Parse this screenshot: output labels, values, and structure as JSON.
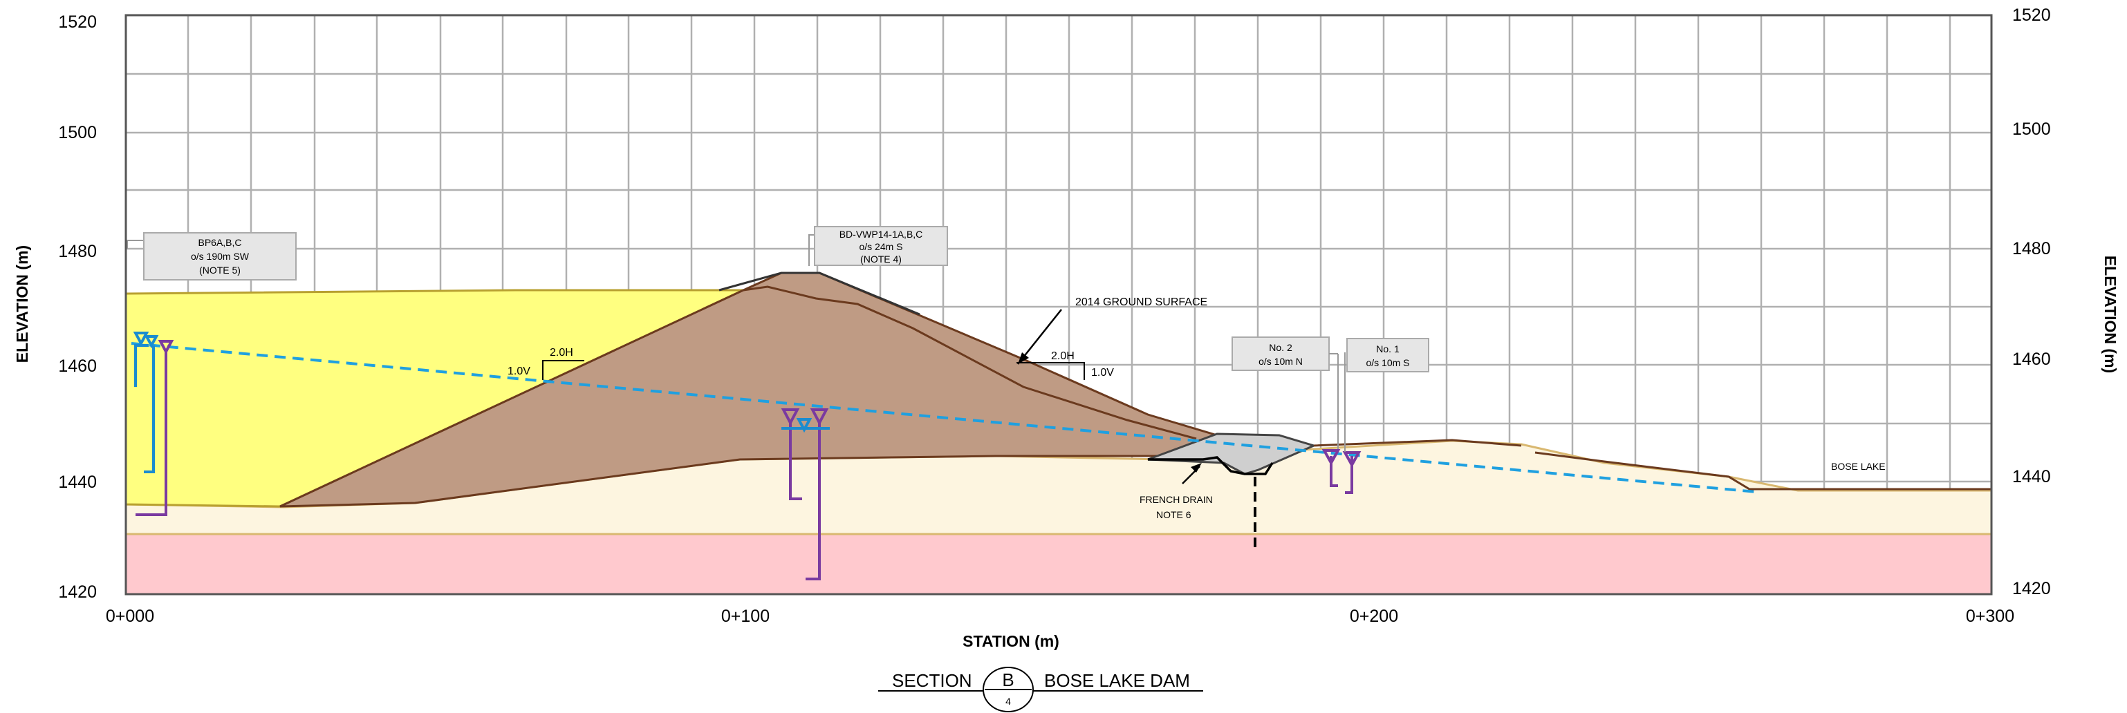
{
  "axes": {
    "y_label_left": "ELEVATION (m)",
    "y_label_right": "ELEVATION (m)",
    "x_label": "STATION (m)",
    "y_ticks_left": [
      "1520",
      "1500",
      "1480",
      "1460",
      "1440",
      "1420"
    ],
    "y_ticks_right": [
      "1520",
      "1500",
      "1480",
      "1460",
      "1440",
      "1420"
    ],
    "x_ticks": [
      "0+000",
      "0+100",
      "0+200",
      "0+300"
    ]
  },
  "labels": {
    "bp6_line1": "BP6A,B,C",
    "bp6_line2": "o/s 190m SW",
    "bp6_line3": "(NOTE 5)",
    "bdvwp_line1": "BD-VWP14-1A,B,C",
    "bdvwp_line2": "o/s 24m S",
    "bdvwp_line3": "(NOTE 4)",
    "no2_line1": "No. 2",
    "no2_line2": "o/s 10m N",
    "no1_line1": "No. 1",
    "no1_line2": "o/s 10m S",
    "ground_surface": "2014 GROUND SURFACE",
    "french_drain_1": "FRENCH DRAIN",
    "french_drain_2": "NOTE 6",
    "bose_lake": "BOSE LAKE",
    "slope_left_h": "2.0H",
    "slope_left_v": "1.0V",
    "slope_right_h": "2.0H",
    "slope_right_v": "1.0V"
  },
  "title": {
    "prefix": "SECTION",
    "section_letter": "B",
    "sheet": "4",
    "name": "BOSE LAKE DAM"
  },
  "colors": {
    "fill_material": "#ffff80",
    "dam_core": "#bf9b84",
    "foundation": "#fdf5e0",
    "bedrock": "#ffc9ce",
    "phreatic_line": "#1fa0e0",
    "piezometer_blue": "#1a8cd0",
    "piezometer_purple": "#7a3aa0"
  }
}
